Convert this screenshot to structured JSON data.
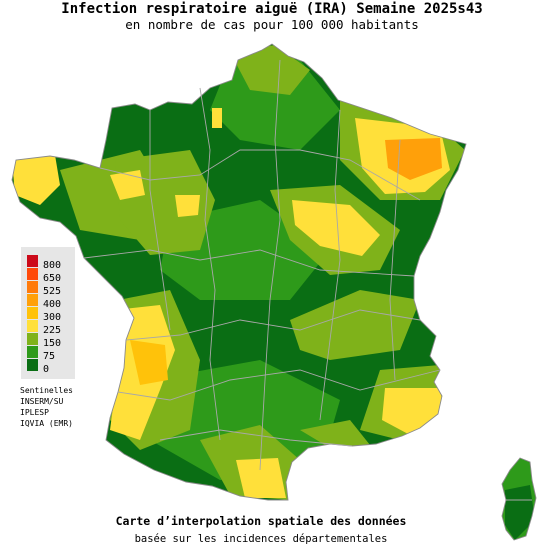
{
  "header": {
    "title": "Infection respiratoire aiguë (IRA) Semaine 2025s43",
    "subtitle": "en nombre de cas pour 100 000 habitants"
  },
  "legend": {
    "levels": [
      {
        "label": "800",
        "color": "#cc0a1a"
      },
      {
        "label": "650",
        "color": "#ff4a0a"
      },
      {
        "label": "525",
        "color": "#ff7a0a"
      },
      {
        "label": "400",
        "color": "#ffa00a"
      },
      {
        "label": "300",
        "color": "#ffc20a"
      },
      {
        "label": "225",
        "color": "#ffe03a"
      },
      {
        "label": "150",
        "color": "#7fb21a"
      },
      {
        "label": "75",
        "color": "#2e9a1a"
      },
      {
        "label": "0",
        "color": "#0a6e14"
      }
    ]
  },
  "sources": [
    "Sentinelles",
    "INSERM/SU",
    "IPLESP",
    "IQVIA (EMR)"
  ],
  "caption": {
    "line1": "Carte d’interpolation spatiale des données",
    "line2": "basée sur les incidences départementales"
  },
  "colors": {
    "dark_green": "#0a6e14",
    "green": "#2e9a1a",
    "light_green": "#7fb21a",
    "yellow": "#ffe03a",
    "yellow_orange": "#ffc20a",
    "orange": "#ffa00a",
    "border_gray": "#a8a8a8"
  }
}
